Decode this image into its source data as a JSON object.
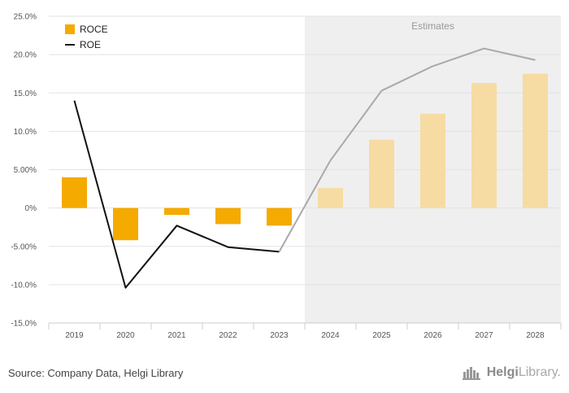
{
  "chart_data": {
    "type": "bar",
    "categories": [
      "2019",
      "2020",
      "2021",
      "2022",
      "2023",
      "2024",
      "2025",
      "2026",
      "2027",
      "2028"
    ],
    "series": [
      {
        "name": "ROCE",
        "type": "bar",
        "color": "#f5aa00",
        "estimate_color": "#f6dca2",
        "values": [
          4.0,
          -4.2,
          -0.9,
          -2.1,
          -2.3,
          2.6,
          8.9,
          12.3,
          16.3,
          17.5
        ]
      },
      {
        "name": "ROE",
        "type": "line",
        "color": "#111111",
        "estimate_color": "#a9a9a9",
        "values": [
          14.0,
          -10.4,
          -2.3,
          -5.1,
          -5.7,
          6.2,
          15.3,
          18.5,
          20.8,
          19.3
        ]
      }
    ],
    "estimates_from": "2024",
    "estimates_label": "Estimates",
    "y_ticks": [
      "25.0%",
      "20.0%",
      "15.0%",
      "10.0%",
      "5.00%",
      "0%",
      "-5.00%",
      "-10.0%",
      "-15.0%"
    ],
    "ylim": [
      -15,
      25
    ],
    "grid": true,
    "legend": "top-left"
  },
  "footer": {
    "source": "Source: Company Data, Helgi Library",
    "logo_icon": "helgi-library-logo-icon",
    "logo_helgi": "Helgi",
    "logo_library": "Library."
  }
}
